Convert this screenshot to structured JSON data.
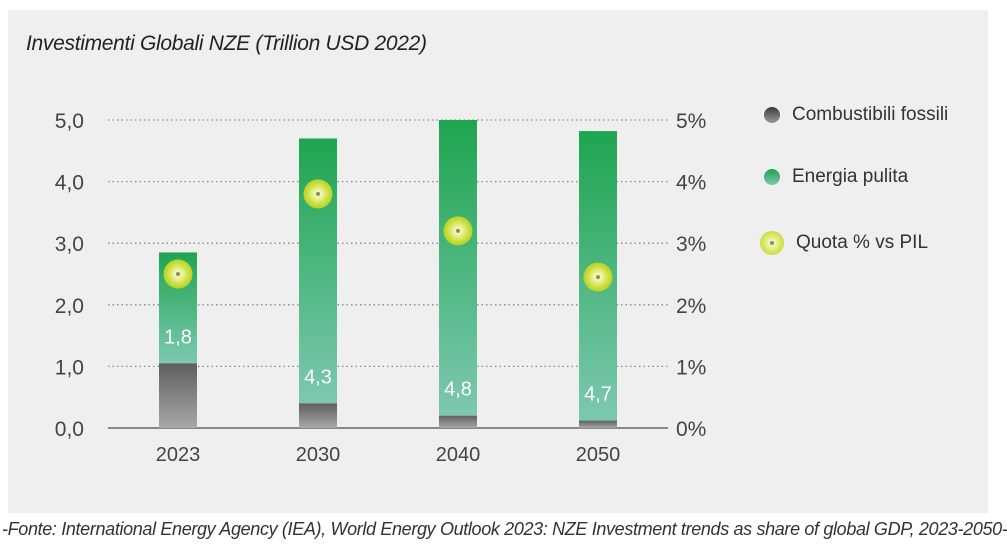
{
  "chart_data": {
    "type": "bar",
    "title": "Investimenti Globali NZE (Trillion USD 2022)",
    "categories": [
      "2023",
      "2030",
      "2040",
      "2050"
    ],
    "series": [
      {
        "name": "Combustibili fossili",
        "values": [
          1.05,
          0.4,
          0.2,
          0.12
        ],
        "color": "#6e6e6e"
      },
      {
        "name": "Energia pulita",
        "values": [
          1.8,
          4.3,
          4.8,
          4.7
        ],
        "color": "#2aa858"
      },
      {
        "name": "Quota % vs PIL",
        "values": [
          2.5,
          3.8,
          3.2,
          2.45
        ],
        "axis": "right",
        "color": "#c8de3a"
      }
    ],
    "bar_labels": [
      "1,8",
      "4,3",
      "4,8",
      "4,7"
    ],
    "ylim": [
      0,
      5
    ],
    "yticks": [
      "0,0",
      "1,0",
      "2,0",
      "3,0",
      "4,0",
      "5,0"
    ],
    "y2lim": [
      0,
      5
    ],
    "y2ticks": [
      "0%",
      "1%",
      "2%",
      "3%",
      "4%",
      "5%"
    ],
    "grid": true,
    "legend_position": "right"
  },
  "legend": {
    "fossil": "Combustibili fossili",
    "clean": "Energia pulita",
    "gdp": "Quota % vs PIL"
  },
  "source": "-Fonte: International Energy Agency (IEA), World Energy Outlook 2023: NZE Investment trends as share of global GDP, 2023-2050-"
}
